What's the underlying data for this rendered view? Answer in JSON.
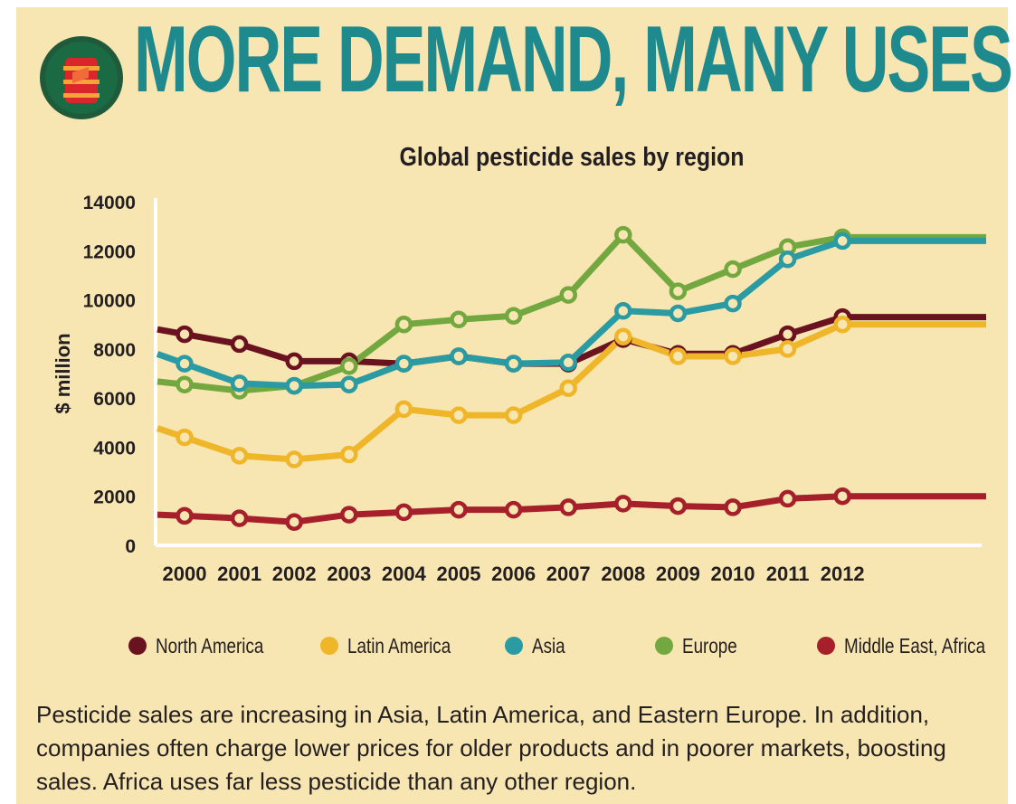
{
  "header": {
    "title": "MORE DEMAND, MANY USES"
  },
  "caption": "Pesticide sales are increasing in Asia, Latin America, and Eastern Europe. In addition, companies often charge lower prices for older products and in poorer markets, boosting sales. Africa uses far less pesticide than any other region.",
  "colors": {
    "background": "#f8e6b2",
    "title": "#1e8a8e",
    "north_america": "#6b1220",
    "latin_america": "#f0b62a",
    "asia": "#2a9aa3",
    "europe": "#72a83f",
    "middle_east_africa": "#a5202a"
  },
  "chart_data": {
    "type": "line",
    "title": "Global pesticide sales by region",
    "xlabel": "",
    "ylabel": "$ million",
    "x": [
      "2000",
      "2001",
      "2002",
      "2003",
      "2004",
      "2005",
      "2006",
      "2007",
      "2008",
      "2009",
      "2010",
      "2011",
      "2012"
    ],
    "ylim": [
      0,
      14000
    ],
    "yticks": [
      "0",
      "2000",
      "4000",
      "6000",
      "8000",
      "10000",
      "12000",
      "14000"
    ],
    "grid": false,
    "legend_position": "bottom",
    "series": [
      {
        "name": "North America",
        "color": "#6b1220",
        "values": [
          8600,
          8200,
          7500,
          7500,
          7400,
          7700,
          7400,
          7400,
          8400,
          7800,
          7800,
          8600,
          9300
        ]
      },
      {
        "name": "Latin America",
        "color": "#f0b62a",
        "values": [
          4400,
          3650,
          3500,
          3700,
          5550,
          5300,
          5300,
          6400,
          8500,
          7700,
          7700,
          8000,
          9000
        ]
      },
      {
        "name": "Asia",
        "color": "#2a9aa3",
        "values": [
          7400,
          6600,
          6500,
          6550,
          7400,
          7700,
          7400,
          7450,
          9550,
          9450,
          9850,
          11650,
          12400
        ]
      },
      {
        "name": "Europe",
        "color": "#72a83f",
        "values": [
          6550,
          6300,
          6500,
          7300,
          9000,
          9200,
          9350,
          10200,
          12650,
          10350,
          11250,
          12150,
          12550
        ]
      },
      {
        "name": "Middle East, Africa",
        "color": "#a5202a",
        "values": [
          1200,
          1100,
          950,
          1250,
          1350,
          1450,
          1450,
          1550,
          1700,
          1600,
          1550,
          1900,
          2000
        ]
      }
    ]
  }
}
